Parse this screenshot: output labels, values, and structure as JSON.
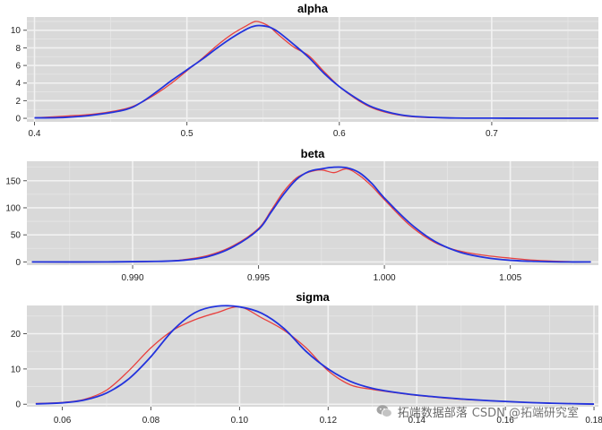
{
  "colors": {
    "panel_bg": "#d9d9d9",
    "grid_major": "#f2f2f2",
    "grid_minor": "#e6e6e6",
    "series_1": "#e8413f",
    "series_2": "#2233dd"
  },
  "watermark": {
    "text": "CSDN @拓端研究室",
    "logo_text": "拓端数据部落",
    "logo_icon": "wechat-icon"
  },
  "chart_data": [
    {
      "type": "line",
      "title": "alpha",
      "xlim": [
        0.395,
        0.77
      ],
      "ylim": [
        -0.4,
        11.5
      ],
      "xticks": [
        0.4,
        0.5,
        0.6,
        0.7
      ],
      "xtick_labels": [
        "0.4",
        "0.5",
        "0.6",
        "0.7"
      ],
      "yticks": [
        0,
        2,
        4,
        6,
        8,
        10
      ],
      "ytick_labels": [
        "0",
        "2",
        "4",
        "6",
        "8",
        "10"
      ],
      "grid": true,
      "series": [
        {
          "x": [
            0.4,
            0.42,
            0.44,
            0.46,
            0.47,
            0.48,
            0.49,
            0.5,
            0.51,
            0.52,
            0.53,
            0.54,
            0.545,
            0.55,
            0.555,
            0.56,
            0.57,
            0.58,
            0.59,
            0.6,
            0.61,
            0.62,
            0.63,
            0.64,
            0.65,
            0.67,
            0.7,
            0.73,
            0.77
          ],
          "y": [
            0.05,
            0.25,
            0.5,
            1.1,
            1.8,
            2.8,
            4.0,
            5.4,
            6.8,
            8.3,
            9.6,
            10.6,
            11.0,
            10.8,
            10.3,
            9.5,
            8.1,
            7.1,
            5.3,
            3.6,
            2.3,
            1.3,
            0.7,
            0.35,
            0.15,
            0.05,
            0.03,
            0.02,
            0.02
          ]
        },
        {
          "x": [
            0.4,
            0.42,
            0.44,
            0.46,
            0.47,
            0.48,
            0.49,
            0.5,
            0.51,
            0.52,
            0.53,
            0.54,
            0.545,
            0.55,
            0.555,
            0.56,
            0.57,
            0.58,
            0.59,
            0.6,
            0.61,
            0.62,
            0.63,
            0.64,
            0.65,
            0.67,
            0.7,
            0.73,
            0.77
          ],
          "y": [
            0.05,
            0.1,
            0.4,
            1.0,
            1.8,
            3.0,
            4.3,
            5.5,
            6.7,
            8.0,
            9.2,
            10.2,
            10.5,
            10.5,
            10.3,
            9.8,
            8.4,
            6.9,
            5.1,
            3.6,
            2.4,
            1.4,
            0.8,
            0.4,
            0.2,
            0.05,
            0.02,
            0.01,
            0.01
          ]
        }
      ]
    },
    {
      "type": "line",
      "title": "beta",
      "xlim": [
        0.9858,
        1.0085
      ],
      "ylim": [
        -6,
        186
      ],
      "xticks": [
        0.99,
        0.995,
        1.0,
        1.005
      ],
      "xtick_labels": [
        "0.990",
        "0.995",
        "1.000",
        "1.005"
      ],
      "yticks": [
        0,
        50,
        100,
        150
      ],
      "ytick_labels": [
        "0",
        "50",
        "100",
        "150"
      ],
      "grid": true,
      "series": [
        {
          "x": [
            0.986,
            0.989,
            0.991,
            0.992,
            0.993,
            0.994,
            0.995,
            0.9955,
            0.996,
            0.9965,
            0.997,
            0.9975,
            0.998,
            0.9985,
            0.999,
            0.9995,
            1.0,
            1.001,
            1.002,
            1.003,
            1.004,
            1.005,
            1.006,
            1.007,
            1.0082
          ],
          "y": [
            0,
            0,
            1,
            4,
            12,
            30,
            62,
            95,
            130,
            155,
            166,
            170,
            165,
            172,
            160,
            140,
            115,
            68,
            36,
            20,
            12,
            7,
            3,
            1,
            0
          ]
        },
        {
          "x": [
            0.986,
            0.989,
            0.991,
            0.992,
            0.993,
            0.994,
            0.995,
            0.9955,
            0.996,
            0.9965,
            0.997,
            0.9975,
            0.998,
            0.9985,
            0.999,
            0.9995,
            1.0,
            1.001,
            1.002,
            1.003,
            1.004,
            1.005,
            1.006,
            1.007,
            1.0082
          ],
          "y": [
            0,
            0,
            1,
            3,
            10,
            28,
            60,
            92,
            125,
            152,
            167,
            172,
            175,
            174,
            165,
            145,
            118,
            72,
            38,
            18,
            8,
            3,
            1,
            0,
            0
          ]
        }
      ]
    },
    {
      "type": "line",
      "title": "sigma",
      "xlim": [
        0.052,
        0.181
      ],
      "ylim": [
        -0.7,
        28
      ],
      "xticks": [
        0.06,
        0.08,
        0.1,
        0.12,
        0.14,
        0.16,
        0.18
      ],
      "xtick_labels": [
        "0.06",
        "0.08",
        "0.10",
        "0.12",
        "0.14",
        "0.16",
        "0.18"
      ],
      "yticks": [
        0,
        10,
        20
      ],
      "ytick_labels": [
        "0",
        "10",
        "20"
      ],
      "grid": true,
      "series": [
        {
          "x": [
            0.054,
            0.06,
            0.065,
            0.07,
            0.075,
            0.08,
            0.085,
            0.09,
            0.095,
            0.1,
            0.105,
            0.11,
            0.115,
            0.12,
            0.125,
            0.13,
            0.135,
            0.14,
            0.145,
            0.15,
            0.155,
            0.16,
            0.165,
            0.17,
            0.175,
            0.18
          ],
          "y": [
            0.2,
            0.5,
            1.4,
            4.0,
            9.5,
            16.0,
            21.0,
            24.0,
            26.0,
            27.6,
            24.5,
            21.0,
            16.0,
            9.5,
            5.5,
            4.2,
            3.3,
            2.5,
            1.9,
            1.4,
            1.1,
            0.8,
            0.5,
            0.3,
            0.15,
            0.05
          ]
        },
        {
          "x": [
            0.054,
            0.06,
            0.065,
            0.07,
            0.075,
            0.08,
            0.085,
            0.09,
            0.095,
            0.1,
            0.105,
            0.11,
            0.115,
            0.12,
            0.125,
            0.13,
            0.135,
            0.14,
            0.145,
            0.15,
            0.155,
            0.16,
            0.165,
            0.17,
            0.175,
            0.18
          ],
          "y": [
            0.1,
            0.4,
            1.2,
            3.2,
            7.2,
            13.5,
            21.0,
            26.0,
            27.8,
            27.6,
            25.8,
            21.5,
            15.0,
            10.0,
            6.5,
            4.5,
            3.4,
            2.6,
            2.0,
            1.5,
            1.1,
            0.8,
            0.5,
            0.3,
            0.15,
            0.05
          ]
        }
      ]
    }
  ]
}
